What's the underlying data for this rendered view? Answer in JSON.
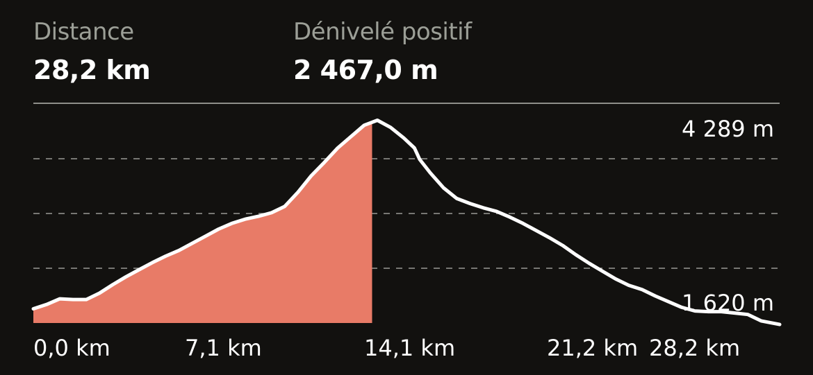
{
  "stats": {
    "distance": {
      "label": "Distance",
      "value": "28,2 km"
    },
    "elevation_gain": {
      "label": "Dénivelé positif",
      "value": "2 467,0 m"
    }
  },
  "colors": {
    "background": "#12110f",
    "fill_progress": "#e87b67",
    "line": "#ffffff",
    "grid": "#9a9a95",
    "label_muted": "#9c9f97"
  },
  "chart_data": {
    "type": "area",
    "title": "",
    "xlabel": "",
    "ylabel": "",
    "x_unit": "km",
    "y_unit": "m",
    "xlim": [
      0,
      28.2
    ],
    "ylim": [
      1420,
      4509
    ],
    "x_ticks": [
      "0,0 km",
      "7,1 km",
      "14,1 km",
      "21,2 km",
      "28,2 km"
    ],
    "y_annotations": [
      "4 289 m",
      "1 620 m"
    ],
    "y_annotation_values": [
      4289,
      1620
    ],
    "grid": "horizontal-dashed",
    "progress_x": 12.8,
    "series": [
      {
        "x": [
          0,
          0.5,
          1.0,
          1.5,
          2.0,
          2.5,
          3.0,
          3.5,
          4.0,
          4.5,
          5.0,
          5.5,
          6.0,
          6.5,
          7.0,
          7.5,
          8.0,
          8.5,
          9.0,
          9.5,
          10.0,
          10.5,
          11.0,
          11.5,
          12.0,
          12.5,
          13.0,
          13.5,
          14.0,
          14.4,
          14.6,
          15.0,
          15.5,
          16.0,
          16.5,
          17.0,
          17.5,
          18.0,
          18.5,
          19.0,
          19.5,
          20.0,
          20.5,
          21.0,
          21.5,
          22.0,
          22.5,
          23.0,
          23.5,
          24.0,
          24.5,
          25.0,
          25.5,
          26.0,
          26.5,
          27.0,
          27.5,
          28.2
        ],
        "y": [
          1620,
          1680,
          1760,
          1750,
          1750,
          1840,
          1960,
          2070,
          2170,
          2270,
          2360,
          2440,
          2540,
          2640,
          2740,
          2820,
          2880,
          2920,
          2970,
          3060,
          3260,
          3490,
          3680,
          3880,
          4040,
          4200,
          4270,
          4170,
          4020,
          3880,
          3720,
          3530,
          3320,
          3170,
          3100,
          3040,
          2990,
          2910,
          2820,
          2720,
          2620,
          2510,
          2380,
          2260,
          2150,
          2040,
          1950,
          1890,
          1800,
          1720,
          1640,
          1590,
          1580,
          1580,
          1560,
          1540,
          1450,
          1400
        ]
      }
    ]
  }
}
